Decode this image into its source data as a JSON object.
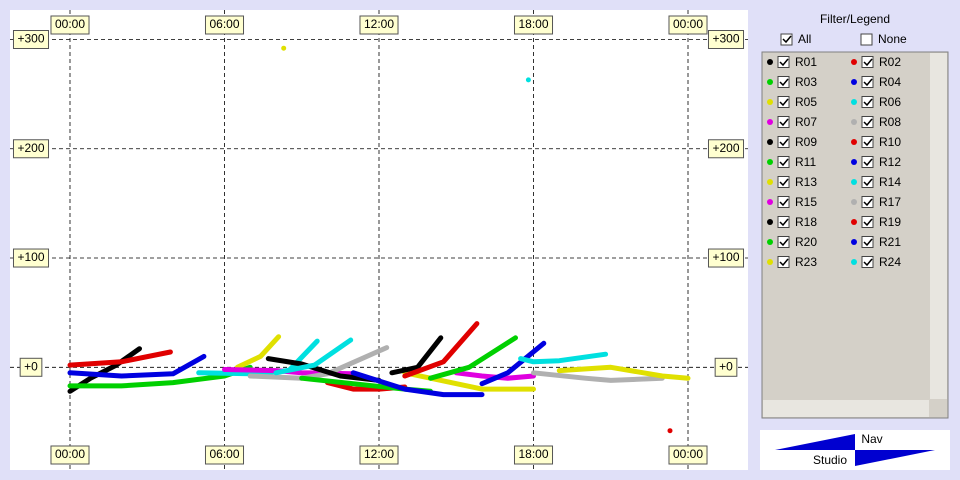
{
  "chart_data": {
    "type": "line",
    "xlim": [
      -2.33,
      26.33
    ],
    "ylim": [
      -94,
      327
    ],
    "xticks": [
      {
        "value": 0,
        "label": "00:00"
      },
      {
        "value": 6,
        "label": "06:00"
      },
      {
        "value": 12,
        "label": "12:00"
      },
      {
        "value": 18,
        "label": "18:00"
      },
      {
        "value": 24,
        "label": "00:00"
      }
    ],
    "yticks": [
      {
        "value": 0,
        "label": "+0"
      },
      {
        "value": 100,
        "label": "+100"
      },
      {
        "value": 200,
        "label": "+200"
      },
      {
        "value": 300,
        "label": "+300"
      }
    ],
    "grid": true,
    "series": [
      {
        "name": "R01",
        "color": "#000000",
        "x": [
          0,
          0.8,
          1.8,
          2.7
        ],
        "values": [
          -22,
          -10,
          2,
          17
        ]
      },
      {
        "name": "R02",
        "color": "#e00000",
        "x": [
          0,
          2,
          3.9,
          4.0,
          23.3
        ],
        "values": [
          2,
          5,
          14,
          null,
          -58
        ]
      },
      {
        "name": "R03",
        "color": "#00d000",
        "x": [
          0,
          2,
          4,
          6,
          7
        ],
        "values": [
          -17,
          -17,
          -14,
          -8,
          0
        ]
      },
      {
        "name": "R04",
        "color": "#0000e0",
        "x": [
          0,
          2,
          4,
          5.2
        ],
        "values": [
          -5,
          -8,
          -6,
          10
        ]
      },
      {
        "name": "R05",
        "color": "#e0e000",
        "x": [
          6.5,
          7.4,
          8.1,
          8.2,
          8.3
        ],
        "values": [
          0,
          10,
          28,
          null,
          292
        ]
      },
      {
        "name": "R06",
        "color": "#00e0e0",
        "x": [
          5,
          7,
          8.5,
          9.6,
          9.7,
          17.8
        ],
        "values": [
          -5,
          -6,
          -3,
          24,
          null,
          263
        ]
      },
      {
        "name": "R07",
        "color": "#e000e0",
        "x": [
          6,
          8,
          9,
          11
        ],
        "values": [
          -2,
          -3,
          -5,
          -6
        ]
      },
      {
        "name": "R08",
        "color": "#b0b0b0",
        "x": [
          7,
          9,
          10,
          12.3
        ],
        "values": [
          -8,
          -10,
          -6,
          18
        ]
      },
      {
        "name": "R09",
        "color": "#000000",
        "x": [
          7.7,
          9,
          10.5,
          12
        ],
        "values": [
          8,
          3,
          -8,
          -12
        ]
      },
      {
        "name": "R10",
        "color": "#e00000",
        "x": [
          10,
          11,
          12,
          13
        ],
        "values": [
          -14,
          -20,
          -20,
          -18
        ]
      },
      {
        "name": "R11",
        "color": "#00d000",
        "x": [
          9,
          11,
          13,
          14
        ],
        "values": [
          -10,
          -15,
          -20,
          -22
        ]
      },
      {
        "name": "R12",
        "color": "#0000e0",
        "x": [
          11,
          13,
          14.5,
          16
        ],
        "values": [
          -5,
          -20,
          -25,
          -25
        ]
      },
      {
        "name": "R13",
        "color": "#e0e000",
        "x": [
          13,
          14,
          16,
          18
        ],
        "values": [
          -5,
          -10,
          -20,
          -20
        ]
      },
      {
        "name": "R14",
        "color": "#00e0e0",
        "x": [
          8,
          9.5,
          10.9
        ],
        "values": [
          -5,
          2,
          25
        ]
      },
      {
        "name": "R15",
        "color": "#e000e0",
        "x": [
          15,
          16,
          17,
          18
        ],
        "values": [
          -5,
          -8,
          -10,
          -8
        ]
      },
      {
        "name": "R17",
        "color": "#b0b0b0",
        "x": [
          18,
          20,
          21,
          23
        ],
        "values": [
          -5,
          -10,
          -12,
          -10
        ]
      },
      {
        "name": "R18",
        "color": "#000000",
        "x": [
          12.5,
          13.5,
          14.4
        ],
        "values": [
          -5,
          0,
          27
        ]
      },
      {
        "name": "R19",
        "color": "#e00000",
        "x": [
          13,
          14.5,
          15.8
        ],
        "values": [
          -8,
          5,
          40
        ]
      },
      {
        "name": "R20",
        "color": "#00d000",
        "x": [
          14,
          15.5,
          17.3
        ],
        "values": [
          -10,
          0,
          27
        ]
      },
      {
        "name": "R21",
        "color": "#0000e0",
        "x": [
          16,
          17,
          18.4
        ],
        "values": [
          -15,
          -5,
          22
        ]
      },
      {
        "name": "R23",
        "color": "#e0e000",
        "x": [
          19,
          21,
          23,
          24
        ],
        "values": [
          -3,
          0,
          -8,
          -10
        ]
      },
      {
        "name": "R24",
        "color": "#00e0e0",
        "x": [
          17.5,
          18,
          19,
          20.8
        ],
        "values": [
          8,
          5,
          6,
          12
        ]
      }
    ]
  },
  "panel": {
    "title": "Filter/Legend",
    "all": "All",
    "none": "None"
  },
  "nav": {
    "top": "Nav",
    "bottom": "Studio"
  }
}
